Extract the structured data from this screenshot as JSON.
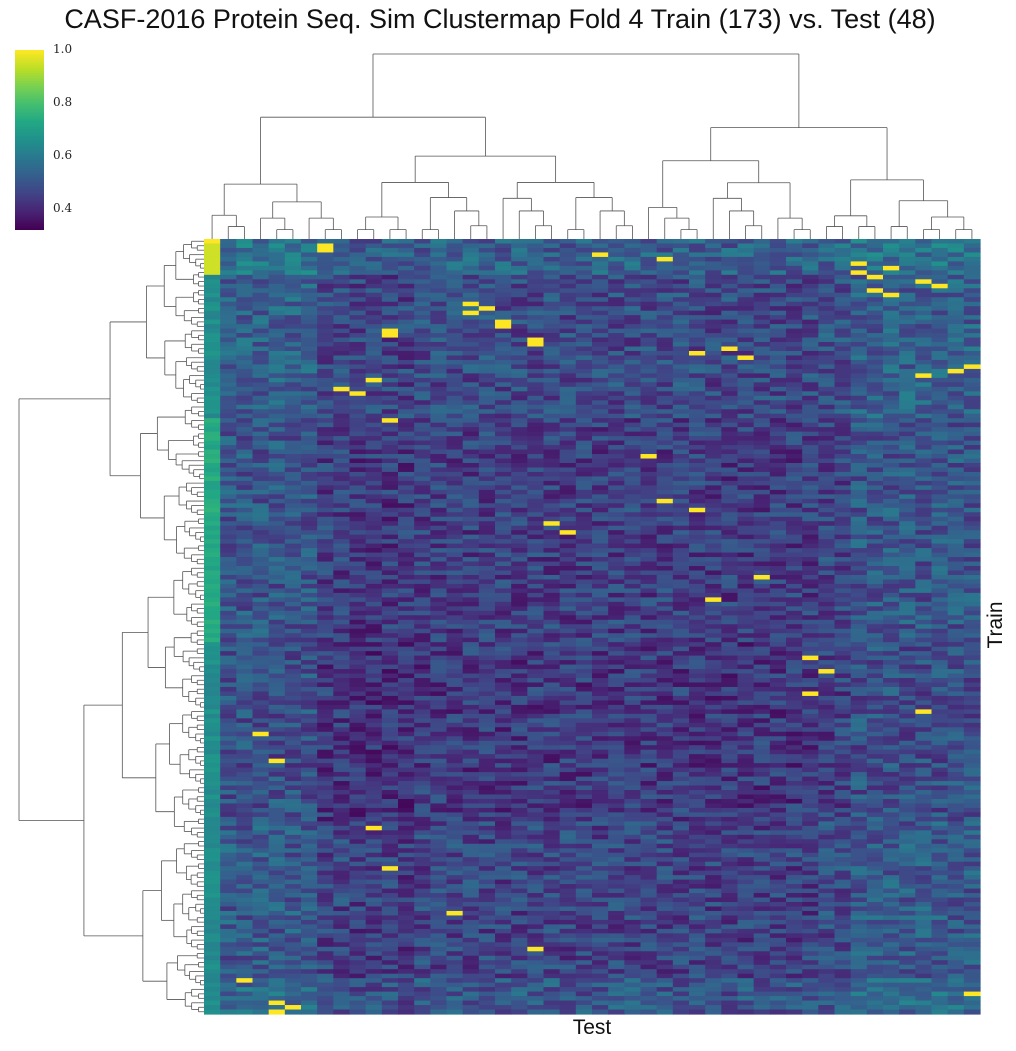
{
  "chart_data": {
    "type": "heatmap",
    "title": "CASF-2016 Protein Seq. Sim Clustermap Fold 4 Train (173) vs. Test (48)",
    "xlabel": "Test",
    "ylabel": "Train",
    "n_rows": 173,
    "n_cols": 48,
    "colormap": "viridis",
    "colorbar": {
      "range": [
        0.32,
        1.0
      ],
      "ticks": [
        0.4,
        0.6,
        0.8,
        1.0
      ],
      "tick_labels": [
        "0.4",
        "0.6",
        "0.8",
        "1.0"
      ]
    },
    "dendrograms": [
      "top (test columns)",
      "left (train rows)"
    ],
    "colors": {
      "viridis_low": "#440154",
      "viridis_mid": "#21918c",
      "viridis_high": "#fde725",
      "dendrogram_line": "#555555"
    }
  }
}
